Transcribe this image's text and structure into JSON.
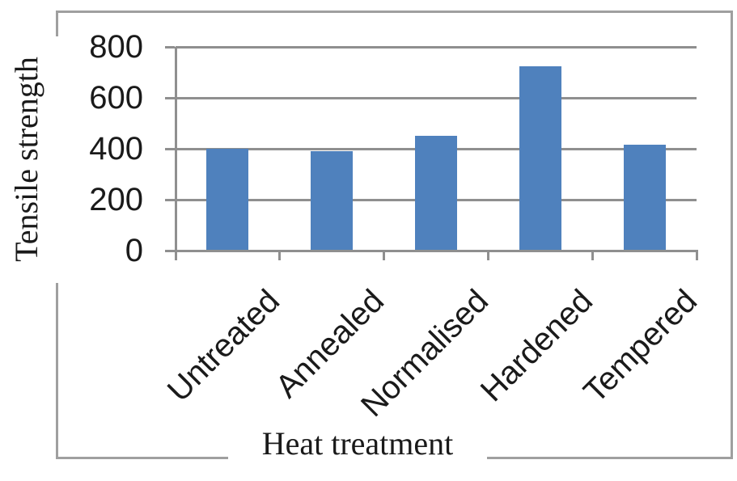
{
  "chart_data": {
    "type": "bar",
    "title": "",
    "xlabel": "Heat treatment",
    "ylabel": "Tensile strength",
    "categories": [
      "Untreated",
      "Annealed",
      "Normalised",
      "Hardened",
      "Tempered"
    ],
    "values": [
      400,
      390,
      450,
      725,
      415
    ],
    "yticks": [
      0,
      200,
      400,
      600,
      800
    ],
    "ylim": [
      0,
      800
    ],
    "grid": true,
    "legend": false,
    "colors": {
      "bar": "#4f81bd",
      "gridline": "#8f8f8f",
      "axis": "#8f8f8f",
      "frame": "#9f9f9f",
      "text": "#1a1a1a",
      "background": "#ffffff"
    }
  }
}
